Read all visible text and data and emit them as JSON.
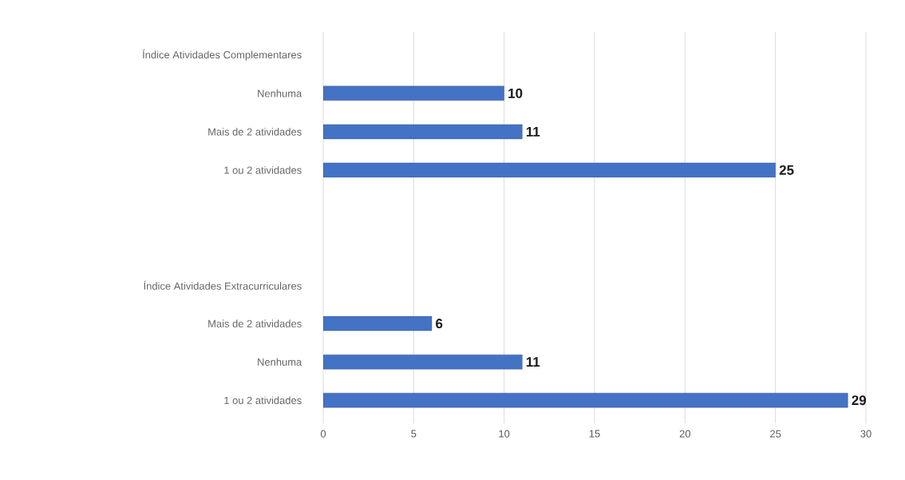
{
  "chart_data": {
    "type": "bar",
    "orientation": "horizontal",
    "categories": [
      "Índice Atividades Complementares",
      "Nenhuma",
      "Mais de 2 atividades",
      "1 ou 2 atividades",
      null,
      null,
      "Índice Atividades Extracurriculares",
      "Mais de 2 atividades",
      "Nenhuma",
      "1 ou 2 atividades"
    ],
    "values": [
      null,
      10,
      11,
      25,
      null,
      null,
      null,
      6,
      11,
      29
    ],
    "color": "#4472c4",
    "data_labels": true,
    "grid": "x",
    "xlim": [
      0,
      30
    ],
    "xticks": [
      0,
      5,
      10,
      15,
      20,
      25,
      30
    ]
  }
}
